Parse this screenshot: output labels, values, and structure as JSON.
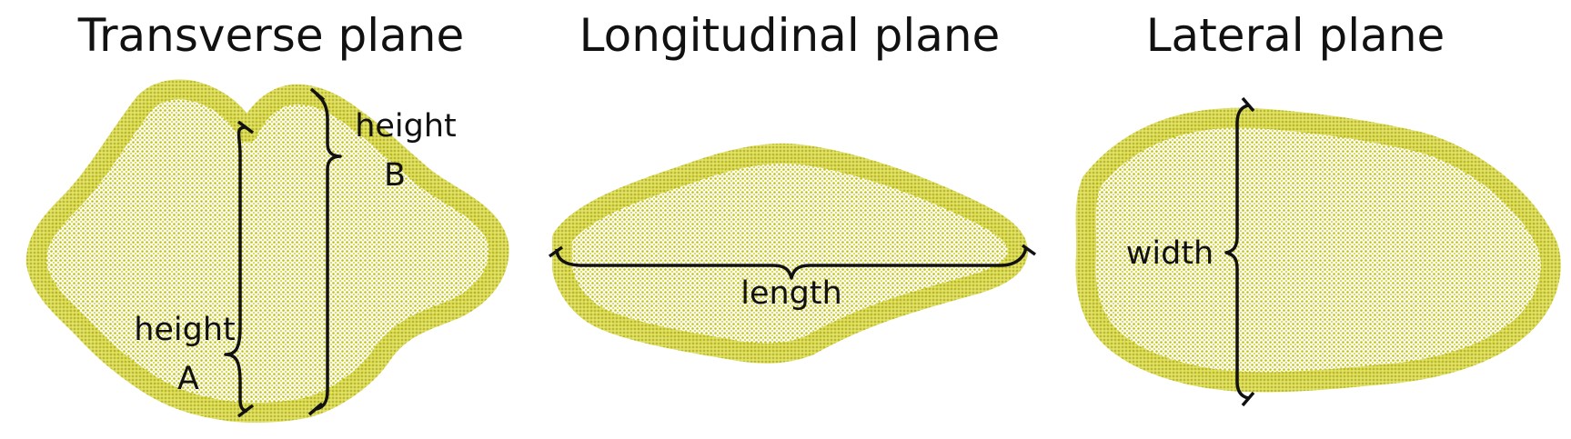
{
  "colors": {
    "point_cloud": "#c2c200",
    "annotation": "#111111",
    "background": "#ffffff"
  },
  "panels": {
    "transverse": {
      "title": "Transverse plane",
      "label_height_a_line1": "height",
      "label_height_a_line2": "A",
      "label_height_b_line1": "height",
      "label_height_b_line2": "B"
    },
    "longitudinal": {
      "title": "Longitudinal plane",
      "label_length": "length"
    },
    "lateral": {
      "title": "Lateral plane",
      "label_width": "width"
    }
  }
}
